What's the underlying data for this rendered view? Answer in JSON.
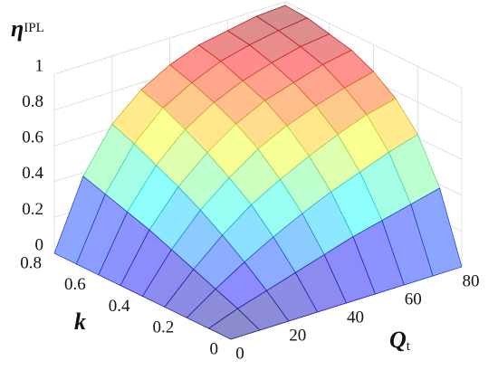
{
  "chart_data": {
    "type": "surface",
    "zlabel": "η",
    "zlabel_sup": "IPL",
    "xlabel": "Q",
    "xlabel_sub": "t",
    "ylabel": "k",
    "x": [
      0,
      10,
      20,
      30,
      40,
      50,
      60,
      70,
      80
    ],
    "y": [
      0,
      0.1,
      0.2,
      0.3,
      0.4,
      0.5,
      0.6,
      0.7,
      0.8
    ],
    "z": [
      [
        0,
        0,
        0,
        0,
        0,
        0,
        0,
        0,
        0
      ],
      [
        0,
        0.06,
        0.11,
        0.16,
        0.21,
        0.26,
        0.3,
        0.34,
        0.38
      ],
      [
        0,
        0.11,
        0.21,
        0.3,
        0.38,
        0.45,
        0.51,
        0.57,
        0.62
      ],
      [
        0,
        0.16,
        0.3,
        0.42,
        0.51,
        0.59,
        0.66,
        0.72,
        0.76
      ],
      [
        0,
        0.21,
        0.38,
        0.51,
        0.62,
        0.7,
        0.76,
        0.81,
        0.85
      ],
      [
        0,
        0.26,
        0.45,
        0.59,
        0.7,
        0.78,
        0.83,
        0.88,
        0.91
      ],
      [
        0,
        0.3,
        0.51,
        0.66,
        0.76,
        0.83,
        0.88,
        0.92,
        0.94
      ],
      [
        0,
        0.34,
        0.57,
        0.72,
        0.81,
        0.88,
        0.92,
        0.95,
        0.97
      ],
      [
        0,
        0.38,
        0.62,
        0.76,
        0.85,
        0.91,
        0.94,
        0.97,
        0.98
      ]
    ],
    "xlim": [
      0,
      80
    ],
    "xticks": [
      0,
      20,
      40,
      60,
      80
    ],
    "ylim": [
      0,
      0.8
    ],
    "yticks": [
      0,
      0.2,
      0.4,
      0.6,
      0.8
    ],
    "zlim": [
      0,
      1
    ],
    "zticks": [
      0,
      0.2,
      0.4,
      0.6,
      0.8,
      1
    ],
    "colormap": "jet",
    "grid": true
  }
}
